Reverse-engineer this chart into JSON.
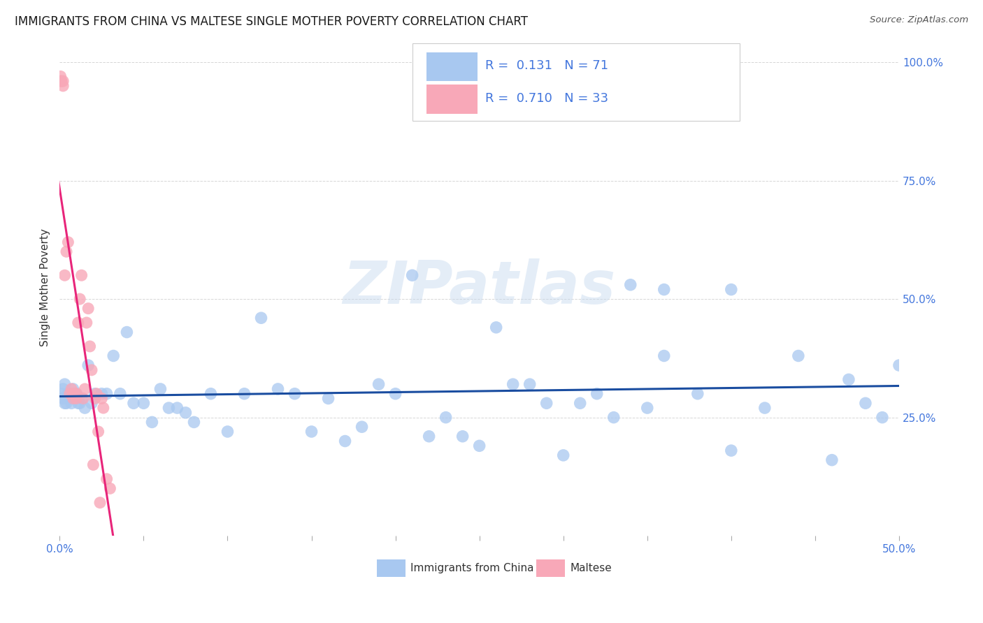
{
  "title": "IMMIGRANTS FROM CHINA VS MALTESE SINGLE MOTHER POVERTY CORRELATION CHART",
  "source": "Source: ZipAtlas.com",
  "ylabel": "Single Mother Poverty",
  "legend_china": "Immigrants from China",
  "legend_maltese": "Maltese",
  "R_china": "0.131",
  "N_china": "71",
  "R_maltese": "0.710",
  "N_maltese": "33",
  "color_china": "#a8c8f0",
  "color_maltese": "#f8a8b8",
  "color_china_line": "#1a4da0",
  "color_maltese_line": "#e8257a",
  "color_right_axis": "#4477dd",
  "xlim": [
    0.0,
    0.5
  ],
  "ylim": [
    0.0,
    1.05
  ],
  "yticks": [
    0.0,
    0.25,
    0.5,
    0.75,
    1.0
  ],
  "ytick_right_labels": [
    "",
    "25.0%",
    "50.0%",
    "75.0%",
    "100.0%"
  ],
  "watermark": "ZIPatlas",
  "background_color": "#ffffff",
  "grid_color": "#cccccc",
  "china_x": [
    0.001,
    0.002,
    0.002,
    0.003,
    0.003,
    0.004,
    0.005,
    0.006,
    0.007,
    0.008,
    0.009,
    0.01,
    0.011,
    0.012,
    0.013,
    0.015,
    0.017,
    0.019,
    0.021,
    0.025,
    0.028,
    0.032,
    0.036,
    0.04,
    0.044,
    0.05,
    0.055,
    0.06,
    0.065,
    0.07,
    0.075,
    0.08,
    0.09,
    0.1,
    0.11,
    0.12,
    0.13,
    0.14,
    0.15,
    0.16,
    0.17,
    0.18,
    0.19,
    0.2,
    0.21,
    0.22,
    0.23,
    0.24,
    0.25,
    0.26,
    0.27,
    0.28,
    0.29,
    0.3,
    0.31,
    0.32,
    0.33,
    0.34,
    0.35,
    0.36,
    0.38,
    0.4,
    0.42,
    0.44,
    0.46,
    0.47,
    0.48,
    0.49,
    0.5,
    0.36,
    0.4
  ],
  "china_y": [
    0.3,
    0.31,
    0.29,
    0.32,
    0.28,
    0.28,
    0.3,
    0.3,
    0.28,
    0.31,
    0.29,
    0.3,
    0.28,
    0.28,
    0.29,
    0.27,
    0.36,
    0.28,
    0.3,
    0.3,
    0.3,
    0.38,
    0.3,
    0.43,
    0.28,
    0.28,
    0.24,
    0.31,
    0.27,
    0.27,
    0.26,
    0.24,
    0.3,
    0.22,
    0.3,
    0.46,
    0.31,
    0.3,
    0.22,
    0.29,
    0.2,
    0.23,
    0.32,
    0.3,
    0.55,
    0.21,
    0.25,
    0.21,
    0.19,
    0.44,
    0.32,
    0.32,
    0.28,
    0.17,
    0.28,
    0.3,
    0.25,
    0.53,
    0.27,
    0.38,
    0.3,
    0.52,
    0.27,
    0.38,
    0.16,
    0.33,
    0.28,
    0.25,
    0.36,
    0.52,
    0.18
  ],
  "maltese_x": [
    0.0005,
    0.001,
    0.001,
    0.002,
    0.002,
    0.003,
    0.004,
    0.005,
    0.006,
    0.007,
    0.008,
    0.008,
    0.009,
    0.01,
    0.01,
    0.011,
    0.012,
    0.013,
    0.014,
    0.015,
    0.016,
    0.017,
    0.018,
    0.019,
    0.02,
    0.021,
    0.022,
    0.023,
    0.024,
    0.025,
    0.026,
    0.028,
    0.03
  ],
  "maltese_y": [
    0.97,
    0.96,
    0.96,
    0.96,
    0.95,
    0.55,
    0.6,
    0.62,
    0.3,
    0.31,
    0.3,
    0.29,
    0.3,
    0.3,
    0.29,
    0.45,
    0.5,
    0.55,
    0.29,
    0.31,
    0.45,
    0.48,
    0.4,
    0.35,
    0.15,
    0.29,
    0.3,
    0.22,
    0.07,
    0.29,
    0.27,
    0.12,
    0.1
  ]
}
